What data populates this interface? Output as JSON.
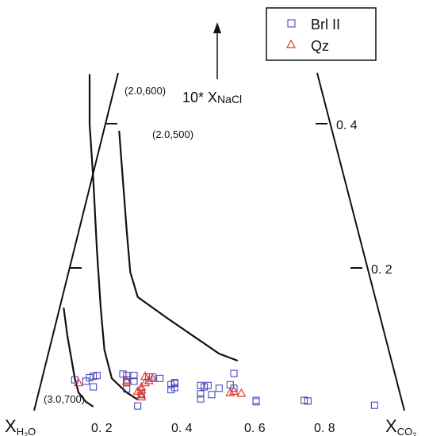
{
  "chart_data": {
    "type": "scatter",
    "title": "",
    "x_label_main": "X",
    "x_label_left_sub": "H",
    "x_label_left_sub2": "2",
    "x_label_left_sub3": "O",
    "x_label_right_sub": "CO",
    "x_label_right_sub2": "2",
    "nacl_label_prefix": "10* X",
    "nacl_label_sub": "NaCl",
    "x_ticks": [
      "0. 2",
      "0. 4",
      "0. 6",
      "0. 8"
    ],
    "x_tick_values": [
      0.2,
      0.4,
      0.6,
      0.8
    ],
    "nacl_ticks": [
      "0. 2",
      "0. 4"
    ],
    "nacl_tick_values": [
      0.2,
      0.4
    ],
    "legend_position": "top-right",
    "series": [
      {
        "name": "Brl II",
        "marker": "square",
        "color": "#3a3ab8",
        "points": [
          [
            0.13,
            0.038
          ],
          [
            0.16,
            0.036
          ],
          [
            0.17,
            0.041
          ],
          [
            0.18,
            0.043
          ],
          [
            0.19,
            0.044
          ],
          [
            0.18,
            0.028
          ],
          [
            0.26,
            0.046
          ],
          [
            0.27,
            0.044
          ],
          [
            0.29,
            0.044
          ],
          [
            0.27,
            0.038
          ],
          [
            0.27,
            0.034
          ],
          [
            0.29,
            0.036
          ],
          [
            0.31,
            0.018
          ],
          [
            0.33,
            0.042
          ],
          [
            0.34,
            0.042
          ],
          [
            0.36,
            0.04
          ],
          [
            0.4,
            0.033
          ],
          [
            0.39,
            0.031
          ],
          [
            0.4,
            0.027
          ],
          [
            0.4,
            0.034
          ],
          [
            0.39,
            0.024
          ],
          [
            0.47,
            0.03
          ],
          [
            0.48,
            0.028
          ],
          [
            0.49,
            0.03
          ],
          [
            0.47,
            0.018
          ],
          [
            0.5,
            0.017
          ],
          [
            0.52,
            0.026
          ],
          [
            0.55,
            0.031
          ],
          [
            0.56,
            0.047
          ],
          [
            0.56,
            0.026
          ],
          [
            0.62,
            0.009
          ],
          [
            0.62,
            0.007
          ],
          [
            0.3,
            0.001
          ],
          [
            0.47,
            0.011
          ],
          [
            0.75,
            0.009
          ],
          [
            0.76,
            0.008
          ],
          [
            0.94,
            0.002
          ],
          [
            0.27,
            0.025
          ]
        ]
      },
      {
        "name": "Qz",
        "marker": "triangle",
        "color": "#e23a2a",
        "points": [
          [
            0.14,
            0.034
          ],
          [
            0.27,
            0.036
          ],
          [
            0.3,
            0.022
          ],
          [
            0.31,
            0.024
          ],
          [
            0.31,
            0.028
          ],
          [
            0.32,
            0.043
          ],
          [
            0.32,
            0.034
          ],
          [
            0.33,
            0.037
          ],
          [
            0.34,
            0.04
          ],
          [
            0.31,
            0.017
          ],
          [
            0.31,
            0.014
          ],
          [
            0.55,
            0.02
          ],
          [
            0.56,
            0.022
          ],
          [
            0.58,
            0.019
          ]
        ]
      }
    ],
    "isopleths": [
      {
        "label": "(2.0,600)",
        "points": [
          [
            0.17,
            0.47
          ],
          [
            0.17,
            0.4
          ],
          [
            0.18,
            0.32
          ],
          [
            0.19,
            0.22
          ],
          [
            0.2,
            0.14
          ],
          [
            0.21,
            0.08
          ],
          [
            0.23,
            0.04
          ],
          [
            0.27,
            0.02
          ],
          [
            0.3,
            0.01
          ]
        ]
      },
      {
        "label": "(2.0,500)",
        "points": [
          [
            0.25,
            0.39
          ],
          [
            0.26,
            0.32
          ],
          [
            0.27,
            0.25
          ],
          [
            0.28,
            0.19
          ],
          [
            0.3,
            0.155
          ],
          [
            0.38,
            0.125
          ],
          [
            0.45,
            0.1
          ],
          [
            0.52,
            0.075
          ],
          [
            0.57,
            0.065
          ]
        ]
      },
      {
        "label": "(3.0,700)",
        "points": [
          [
            0.1,
            0.14
          ],
          [
            0.11,
            0.1
          ],
          [
            0.12,
            0.07
          ],
          [
            0.13,
            0.04
          ],
          [
            0.14,
            0.02
          ],
          [
            0.16,
            0.007
          ],
          [
            0.18,
            0.0
          ]
        ]
      }
    ]
  }
}
